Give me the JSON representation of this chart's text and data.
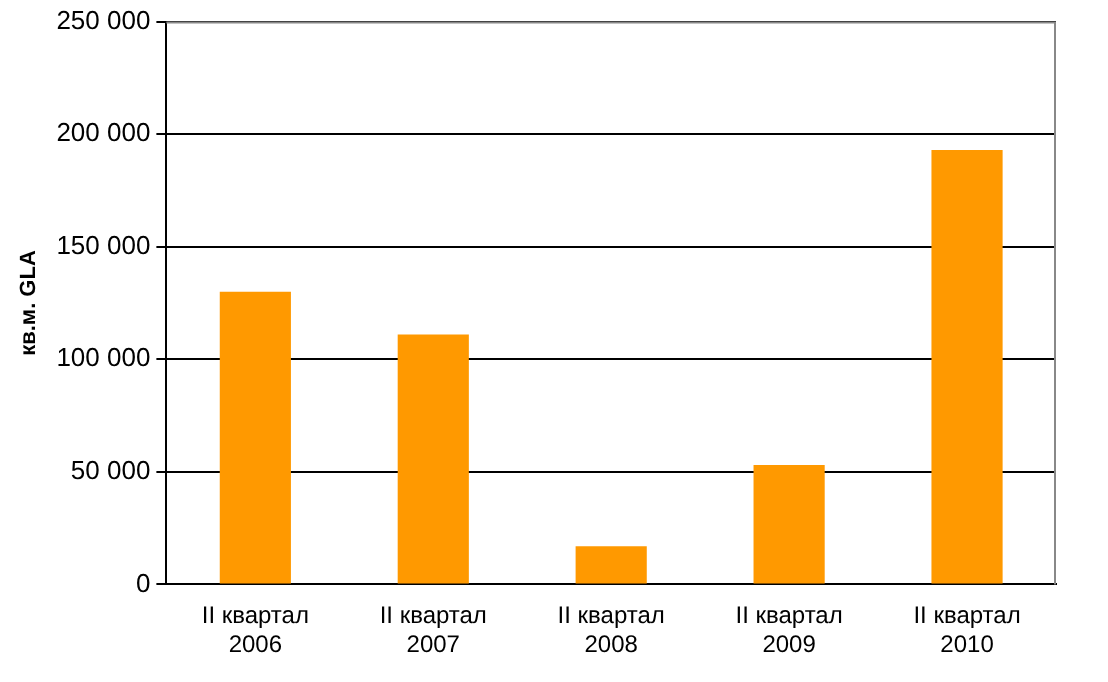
{
  "chart_data": {
    "type": "bar",
    "ylabel": "кв.м. GLA",
    "categories": [
      "II квартал\n2006",
      "II квартал\n2007",
      "II квартал\n2008",
      "II квартал\n2009",
      "II квартал\n2010"
    ],
    "values": [
      130000,
      111000,
      17000,
      53000,
      193000
    ],
    "color": "#ff9900",
    "ylim": [
      0,
      250000
    ],
    "yticks": [
      {
        "value": 0,
        "label": "0"
      },
      {
        "value": 50000,
        "label": "50 000"
      },
      {
        "value": 100000,
        "label": "100 000"
      },
      {
        "value": 150000,
        "label": "150 000"
      },
      {
        "value": 200000,
        "label": "200 000"
      },
      {
        "value": 250000,
        "label": "250 000"
      }
    ],
    "grid": "y",
    "legend": false
  }
}
